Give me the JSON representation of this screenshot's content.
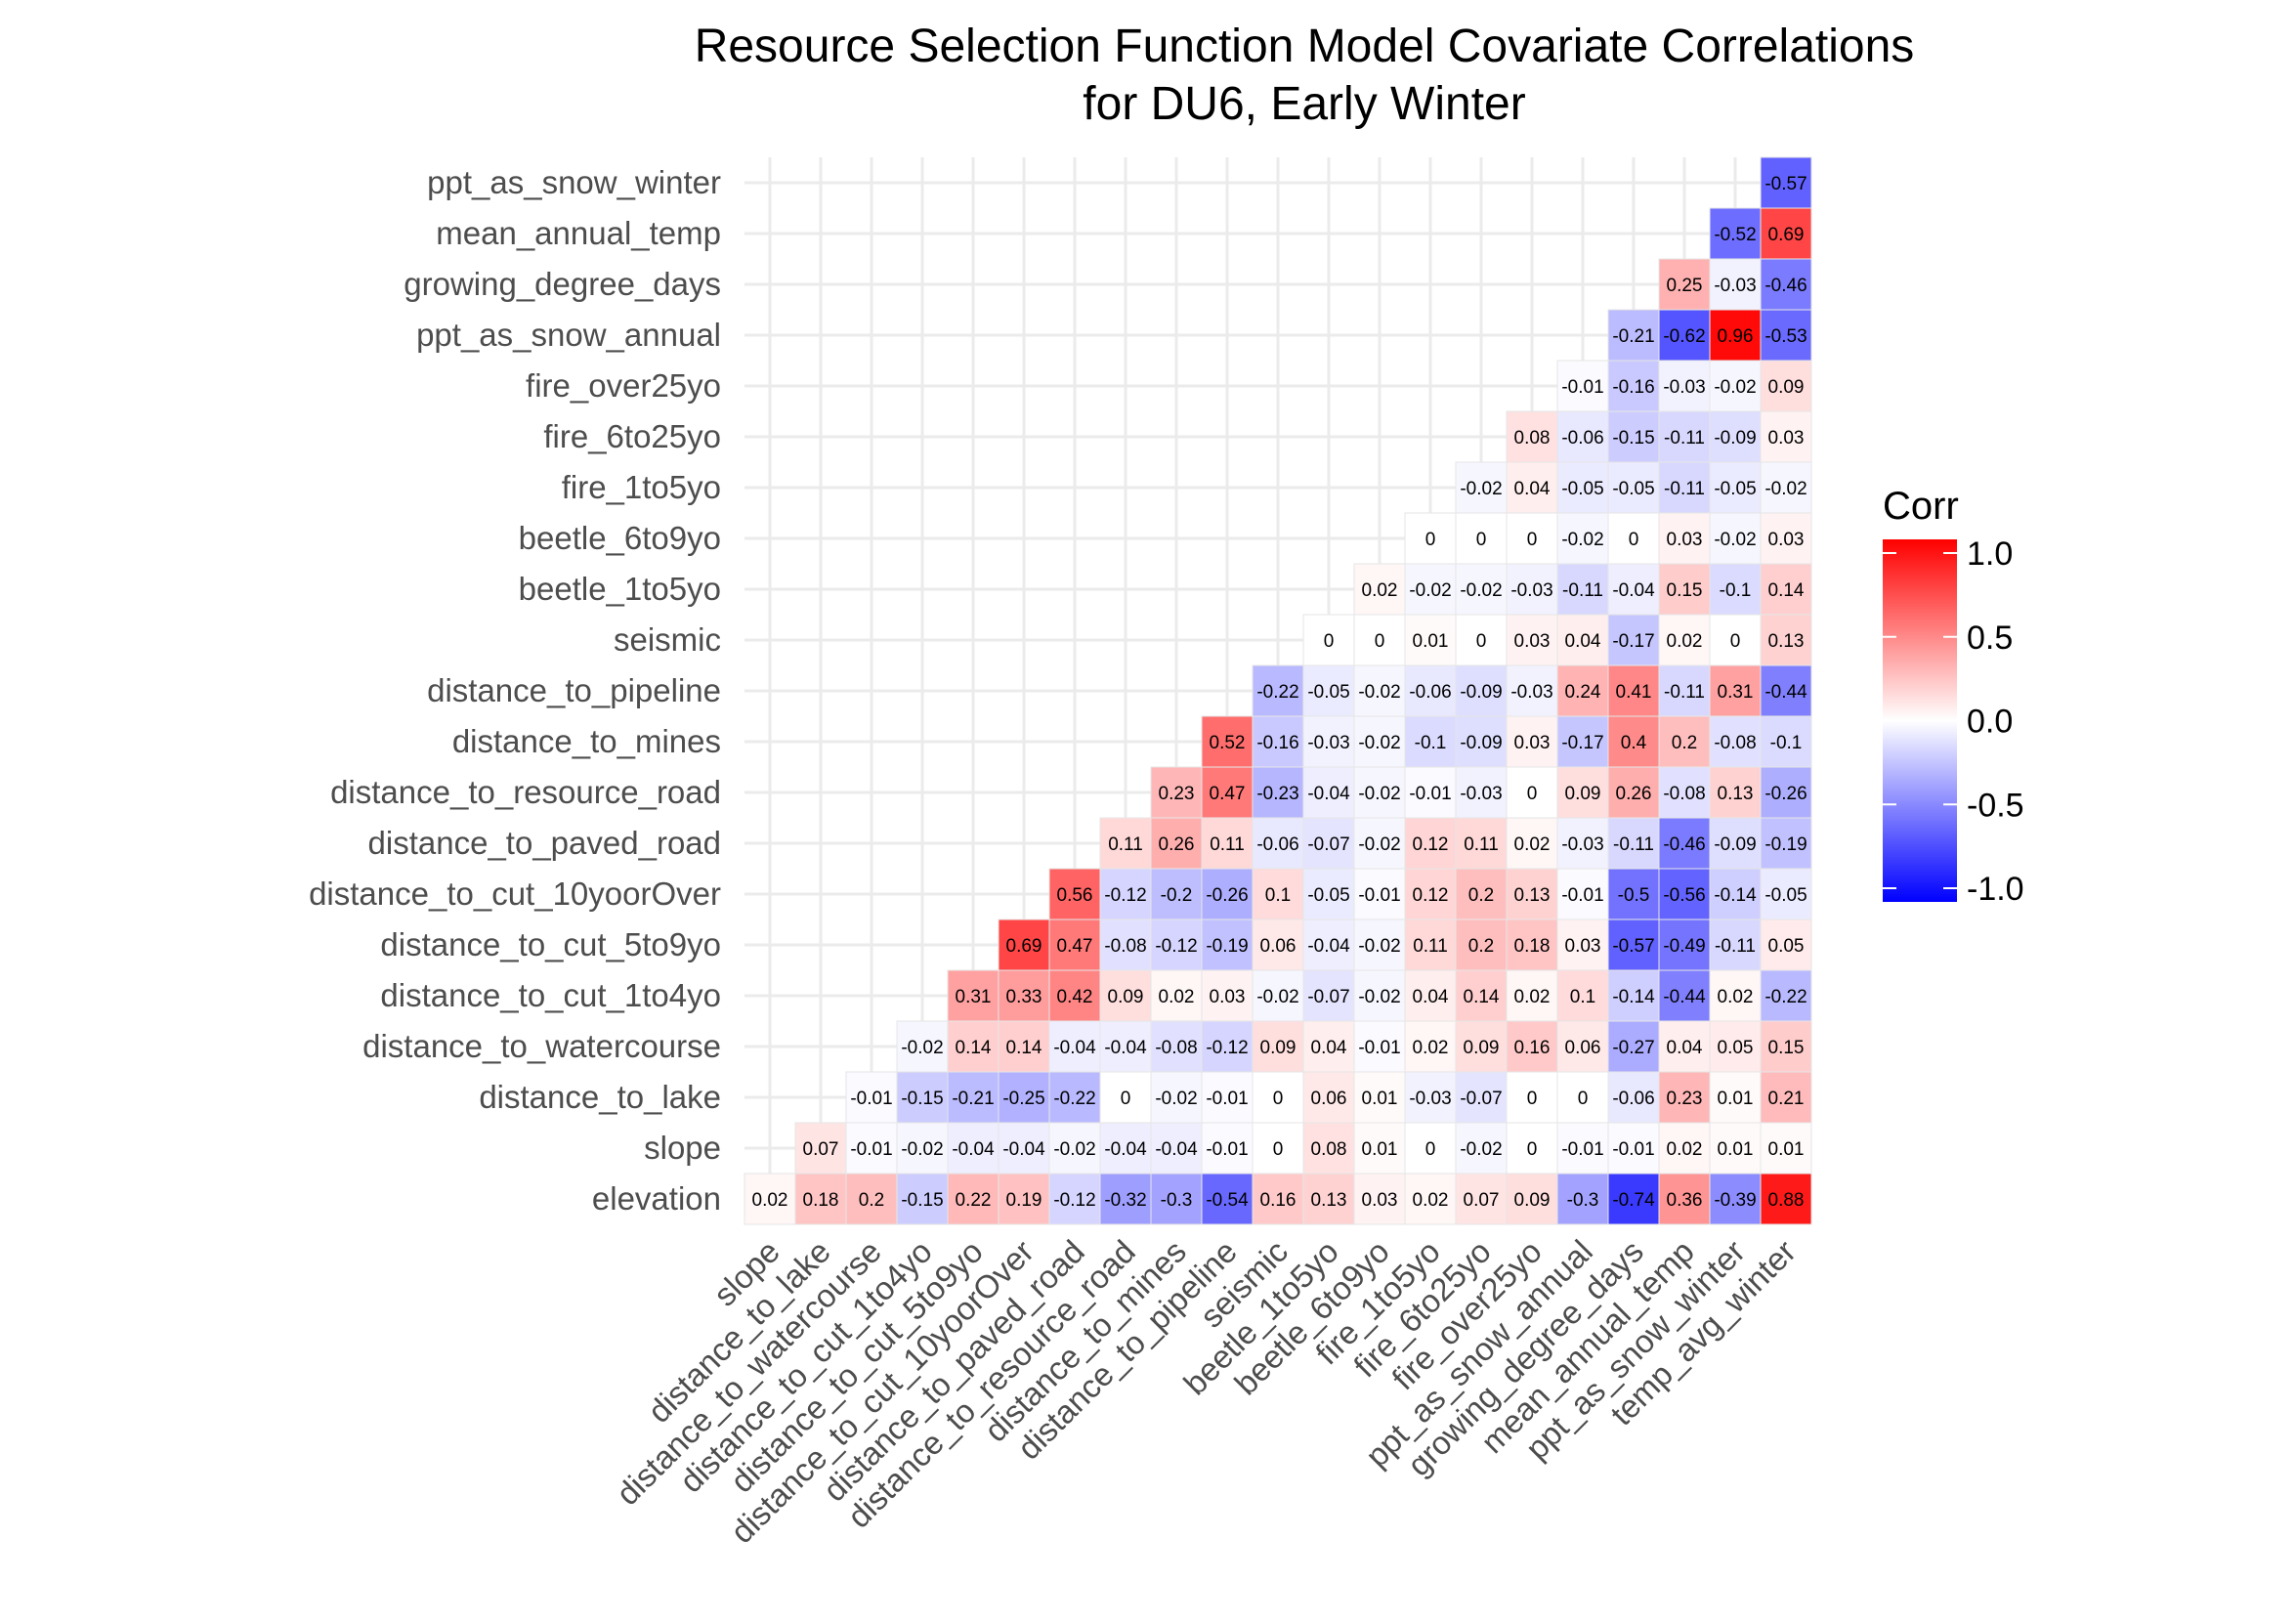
{
  "chart_data": {
    "type": "heatmap",
    "title_line1": "Resource Selection Function Model Covariate Correlations",
    "title_line2": "for DU6, Early Winter",
    "rows": [
      "elevation",
      "slope",
      "distance_to_lake",
      "distance_to_watercourse",
      "distance_to_cut_1to4yo",
      "distance_to_cut_5to9yo",
      "distance_to_cut_10yoorOver",
      "distance_to_paved_road",
      "distance_to_resource_road",
      "distance_to_mines",
      "distance_to_pipeline",
      "seismic",
      "beetle_1to5yo",
      "beetle_6to9yo",
      "fire_1to5yo",
      "fire_6to25yo",
      "fire_over25yo",
      "ppt_as_snow_annual",
      "growing_degree_days",
      "mean_annual_temp",
      "ppt_as_snow_winter"
    ],
    "columns": [
      "slope",
      "distance_to_lake",
      "distance_to_watercourse",
      "distance_to_cut_1to4yo",
      "distance_to_cut_5to9yo",
      "distance_to_cut_10yoorOver",
      "distance_to_paved_road",
      "distance_to_resource_road",
      "distance_to_mines",
      "distance_to_pipeline",
      "seismic",
      "beetle_1to5yo",
      "beetle_6to9yo",
      "fire_1to5yo",
      "fire_6to25yo",
      "fire_over25yo",
      "ppt_as_snow_annual",
      "growing_degree_days",
      "mean_annual_temp",
      "ppt_as_snow_winter",
      "temp_avg_winter"
    ],
    "values": [
      [
        0.02,
        0.18,
        0.2,
        -0.15,
        0.22,
        0.19,
        -0.12,
        -0.32,
        -0.3,
        -0.54,
        0.16,
        0.13,
        0.03,
        0.02,
        0.07,
        0.09,
        -0.3,
        -0.74,
        0.36,
        -0.39,
        0.88
      ],
      [
        0.07,
        -0.01,
        -0.02,
        -0.04,
        -0.04,
        -0.02,
        -0.04,
        -0.04,
        -0.01,
        0,
        0.08,
        0.01,
        0,
        -0.02,
        0,
        -0.01,
        -0.01,
        0.02,
        0.01,
        0.01
      ],
      [
        -0.01,
        -0.15,
        -0.21,
        -0.25,
        -0.22,
        0,
        -0.02,
        -0.01,
        0,
        0.06,
        0.01,
        -0.03,
        -0.07,
        0,
        0,
        -0.06,
        0.23,
        0.01,
        0.21
      ],
      [
        -0.02,
        0.14,
        0.14,
        -0.04,
        -0.04,
        -0.08,
        -0.12,
        0.09,
        0.04,
        -0.01,
        0.02,
        0.09,
        0.16,
        0.06,
        -0.27,
        0.04,
        0.05,
        0.15
      ],
      [
        0.31,
        0.33,
        0.42,
        0.09,
        0.02,
        0.03,
        -0.02,
        -0.07,
        -0.02,
        0.04,
        0.14,
        0.02,
        0.1,
        -0.14,
        -0.44,
        0.02,
        -0.22
      ],
      [
        0.69,
        0.47,
        -0.08,
        -0.12,
        -0.19,
        0.06,
        -0.04,
        -0.02,
        0.11,
        0.2,
        0.18,
        0.03,
        -0.57,
        -0.49,
        -0.11,
        0.05
      ],
      [
        0.56,
        -0.12,
        -0.2,
        -0.26,
        0.1,
        -0.05,
        -0.01,
        0.12,
        0.2,
        0.13,
        -0.01,
        -0.5,
        -0.56,
        -0.14,
        -0.05
      ],
      [
        0.11,
        0.26,
        0.11,
        -0.06,
        -0.07,
        -0.02,
        0.12,
        0.11,
        0.02,
        -0.03,
        -0.11,
        -0.46,
        -0.09,
        -0.19
      ],
      [
        0.23,
        0.47,
        -0.23,
        -0.04,
        -0.02,
        -0.01,
        -0.03,
        0,
        0.09,
        0.26,
        -0.08,
        0.13,
        -0.26
      ],
      [
        0.52,
        -0.16,
        -0.03,
        -0.02,
        -0.1,
        -0.09,
        0.03,
        -0.17,
        0.4,
        0.2,
        -0.08,
        -0.1
      ],
      [
        -0.22,
        -0.05,
        -0.02,
        -0.06,
        -0.09,
        -0.03,
        0.24,
        0.41,
        -0.11,
        0.31,
        -0.44
      ],
      [
        0,
        0,
        0.01,
        0,
        0.03,
        0.04,
        -0.17,
        0.02,
        0,
        0.13
      ],
      [
        0.02,
        -0.02,
        -0.02,
        -0.03,
        -0.11,
        -0.04,
        0.15,
        -0.1,
        0.14
      ],
      [
        0,
        0,
        0,
        -0.02,
        0,
        0.03,
        -0.02,
        0.03
      ],
      [
        -0.02,
        0.04,
        -0.05,
        -0.05,
        -0.11,
        -0.05,
        -0.02
      ],
      [
        0.08,
        -0.06,
        -0.15,
        -0.11,
        -0.09,
        0.03
      ],
      [
        -0.01,
        -0.16,
        -0.03,
        -0.02,
        0.09
      ],
      [
        -0.21,
        -0.62,
        0.96,
        -0.53
      ],
      [
        0.25,
        -0.03,
        -0.46
      ],
      [
        -0.52,
        0.69
      ],
      [
        -0.57
      ]
    ],
    "legend": {
      "title": "Corr",
      "placement": "right",
      "ticks": [
        "1.0",
        "0.5",
        "0.0",
        "-0.5",
        "-1.0"
      ],
      "tick_values": [
        1,
        0.5,
        0,
        -0.5,
        -1
      ],
      "range": [
        -1,
        1
      ]
    },
    "colors": {
      "high": "#FF0000",
      "mid": "#FFFFFF",
      "low": "#0000FF",
      "grid": "#EBEBEB",
      "cell_border": "#E6E6E6"
    }
  }
}
